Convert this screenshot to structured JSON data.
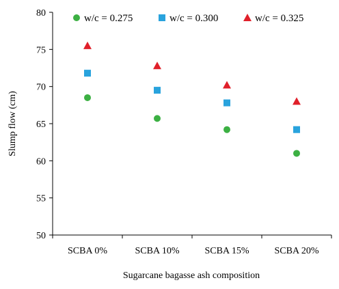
{
  "chart_data": {
    "type": "scatter",
    "title": "",
    "xlabel": "Sugarcane bagasse ash composition",
    "ylabel": "Slump flow (cm)",
    "categories": [
      "SCBA 0%",
      "SCBA 10%",
      "SCBA 15%",
      "SCBA 20%"
    ],
    "ylim": [
      50,
      80
    ],
    "yticks": [
      50,
      55,
      60,
      65,
      70,
      75,
      80
    ],
    "grid": false,
    "legend_position": "top",
    "series": [
      {
        "name": "w/c = 0.275",
        "marker": "circle",
        "color": "#3cb043",
        "values": [
          68.5,
          65.7,
          64.2,
          61.0
        ]
      },
      {
        "name": "w/c = 0.300",
        "marker": "square",
        "color": "#29a3dd",
        "values": [
          71.8,
          69.5,
          67.8,
          64.2
        ]
      },
      {
        "name": "w/c = 0.325",
        "marker": "triangle",
        "color": "#e0202a",
        "values": [
          75.5,
          72.8,
          70.2,
          68.0
        ]
      }
    ]
  }
}
